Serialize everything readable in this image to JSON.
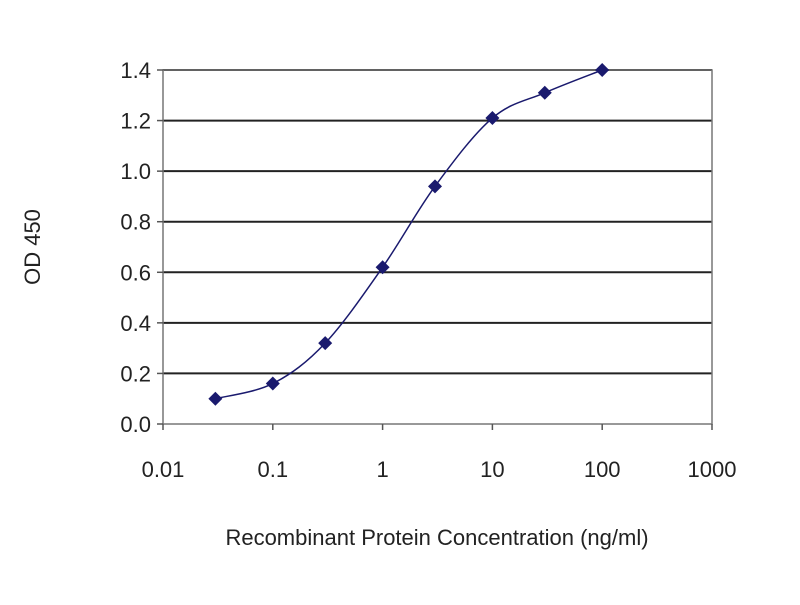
{
  "chart_data": {
    "type": "line",
    "title": "",
    "xlabel": "Recombinant Protein Concentration (ng/ml)",
    "ylabel": "OD 450",
    "x_scale": "log",
    "xlim": [
      0.01,
      1000
    ],
    "ylim": [
      0,
      1.4
    ],
    "x_ticks": [
      0.01,
      0.1,
      1,
      10,
      100,
      1000
    ],
    "x_tick_labels": [
      "0.01",
      "0.1",
      "1",
      "10",
      "100",
      "1000"
    ],
    "y_ticks": [
      0,
      0.2,
      0.4,
      0.6,
      0.8,
      1.0,
      1.2,
      1.4
    ],
    "y_tick_labels": [
      "0.0",
      "0.2",
      "0.4",
      "0.6",
      "0.8",
      "1.0",
      "1.2",
      "1.4"
    ],
    "grid": "horizontal",
    "legend": "none",
    "series": [
      {
        "x": [
          0.03,
          0.1,
          0.3,
          1,
          3,
          10,
          30,
          100
        ],
        "y": [
          0.1,
          0.16,
          0.32,
          0.62,
          0.94,
          1.21,
          1.31,
          1.4
        ],
        "color": "#1a1a6e",
        "marker": "diamond",
        "line": "smooth"
      }
    ]
  }
}
